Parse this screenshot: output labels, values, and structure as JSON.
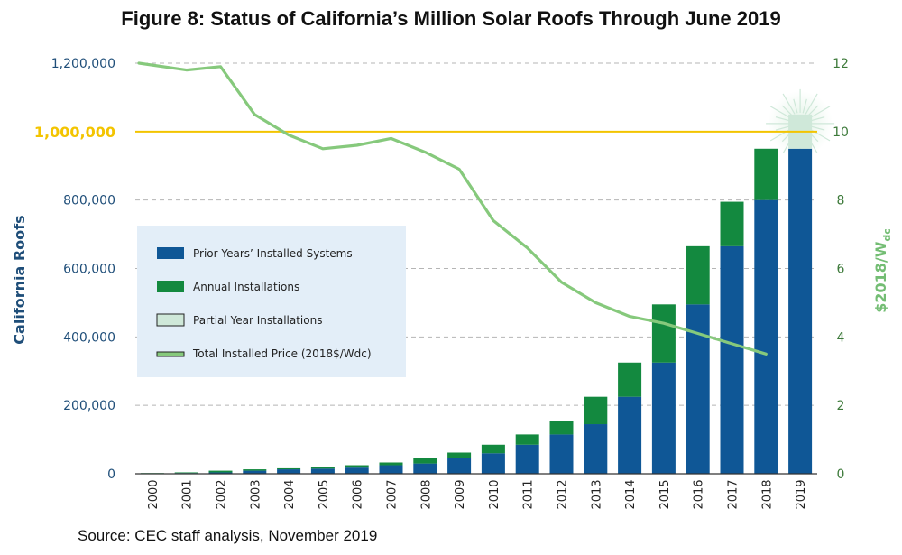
{
  "title": "Figure 8: Status of California’s Million Solar Roofs Through June 2019",
  "source": "Source: CEC staff analysis, November 2019",
  "colors": {
    "prior": "#0f5796",
    "annual": "#13893f",
    "partial": "#cfe8d9",
    "price": "#86c97c",
    "target": "#f3c400",
    "left_axis": "#1f4e79",
    "right_axis": "#73bd73",
    "legend_bg": "#e3eef8"
  },
  "chart_data": {
    "type": "bar",
    "categories": [
      "2000",
      "2001",
      "2002",
      "2003",
      "2004",
      "2005",
      "2006",
      "2007",
      "2008",
      "2009",
      "2010",
      "2011",
      "2012",
      "2013",
      "2014",
      "2015",
      "2016",
      "2017",
      "2018",
      "2019"
    ],
    "series": [
      {
        "name": "Prior Years’ Installed Systems",
        "values": [
          0,
          2000,
          4000,
          9000,
          13000,
          15000,
          18000,
          25000,
          30000,
          45000,
          60000,
          85000,
          115000,
          145000,
          225000,
          325000,
          495000,
          665000,
          800000,
          950000
        ]
      },
      {
        "name": "Annual Installations",
        "values": [
          2000,
          2000,
          5000,
          4000,
          3000,
          4000,
          7000,
          8000,
          15000,
          17000,
          25000,
          30000,
          40000,
          80000,
          100000,
          170000,
          170000,
          130000,
          150000,
          0
        ]
      },
      {
        "name": "Partial Year Installations",
        "values": [
          0,
          0,
          0,
          0,
          0,
          0,
          0,
          0,
          0,
          0,
          0,
          0,
          0,
          0,
          0,
          0,
          0,
          0,
          0,
          100000
        ]
      },
      {
        "name": "Total Installed Price (2018$/Wdc)",
        "axis": "right",
        "type": "line",
        "values": [
          12.0,
          11.8,
          11.9,
          10.5,
          9.9,
          9.5,
          9.6,
          9.8,
          9.4,
          8.9,
          7.4,
          6.6,
          5.6,
          5.0,
          4.6,
          4.4,
          4.1,
          3.8,
          3.5,
          null
        ]
      }
    ],
    "target": {
      "value": 1000000,
      "label": "1,000,000"
    },
    "ylabel": "California Roofs",
    "y2label_main": "$2018/W",
    "y2label_sub": "dc",
    "ylim": [
      0,
      1200000
    ],
    "y2lim": [
      0,
      12
    ],
    "yticks": [
      0,
      200000,
      400000,
      600000,
      800000,
      1200000
    ],
    "ytick_labels": [
      "0",
      "200,000",
      "400,000",
      "600,000",
      "800,000",
      "1,200,000"
    ],
    "y2ticks": [
      0,
      2,
      4,
      6,
      8,
      10,
      12
    ],
    "y2tick_labels": [
      "0",
      "2",
      "4",
      "6",
      "8",
      "10",
      "12"
    ],
    "gridlines": "dashed",
    "legend_position": "left-middle"
  },
  "legend": [
    {
      "label": "Prior Years’ Installed Systems",
      "key": "prior"
    },
    {
      "label": "Annual Installations",
      "key": "annual"
    },
    {
      "label": "Partial Year Installations",
      "key": "partial"
    },
    {
      "label": "Total Installed Price (2018$/Wdc)",
      "key": "price"
    }
  ]
}
